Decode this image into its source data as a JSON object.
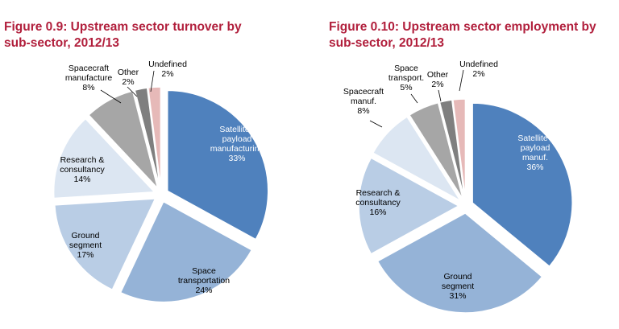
{
  "figures": [
    {
      "title_line1": "Figure 0.9: Upstream sector turnover by",
      "title_line2": "sub-sector, 2012/13"
    },
    {
      "title_line1": "Figure 0.10: Upstream sector employment by",
      "title_line2": "sub-sector, 2012/13"
    }
  ],
  "chart_data": [
    {
      "type": "pie",
      "title": "Figure 0.9: Upstream sector turnover by sub-sector, 2012/13",
      "slices": [
        {
          "label": "Satellite / payload manufacturing",
          "value": 33,
          "display": [
            "Satellite /",
            "payload",
            "manufacturing",
            "33%"
          ],
          "color": "#4f81bd"
        },
        {
          "label": "Space transportation",
          "value": 24,
          "display": [
            "Space",
            "transportation",
            "24%"
          ],
          "color": "#95b3d7"
        },
        {
          "label": "Ground segment",
          "value": 17,
          "display": [
            "Ground",
            "segment",
            "17%"
          ],
          "color": "#b9cde5"
        },
        {
          "label": "Research & consultancy",
          "value": 14,
          "display": [
            "Research &",
            "consultancy",
            "14%"
          ],
          "color": "#dce6f2"
        },
        {
          "label": "Spacecraft manufacture",
          "value": 8,
          "display": [
            "Spacecraft",
            "manufacture",
            "8%"
          ],
          "color": "#a6a6a6"
        },
        {
          "label": "Other",
          "value": 2,
          "display": [
            "Other",
            "2%"
          ],
          "color": "#7f7f7f"
        },
        {
          "label": "Undefined",
          "value": 2,
          "display": [
            "Undefined",
            "2%"
          ],
          "color": "#e6b9b8"
        }
      ]
    },
    {
      "type": "pie",
      "title": "Figure 0.10: Upstream sector employment by sub-sector, 2012/13",
      "slices": [
        {
          "label": "Satellite / payload manuf.",
          "value": 36,
          "display": [
            "Satellite /",
            "payload",
            "manuf.",
            "36%"
          ],
          "color": "#4f81bd"
        },
        {
          "label": "Ground segment",
          "value": 31,
          "display": [
            "Ground",
            "segment",
            "31%"
          ],
          "color": "#95b3d7"
        },
        {
          "label": "Research & consultancy",
          "value": 16,
          "display": [
            "Research &",
            "consultancy",
            "16%"
          ],
          "color": "#b9cde5"
        },
        {
          "label": "Spacecraft manuf.",
          "value": 8,
          "display": [
            "Spacecraft",
            "manuf.",
            "8%"
          ],
          "color": "#dce6f2"
        },
        {
          "label": "Space transport.",
          "value": 5,
          "display": [
            "Space",
            "transport.",
            "5%"
          ],
          "color": "#a6a6a6"
        },
        {
          "label": "Other",
          "value": 2,
          "display": [
            "Other",
            "2%"
          ],
          "color": "#7f7f7f"
        },
        {
          "label": "Undefined",
          "value": 2,
          "display": [
            "Undefined",
            "2%"
          ],
          "color": "#e6b9b8"
        }
      ]
    }
  ]
}
